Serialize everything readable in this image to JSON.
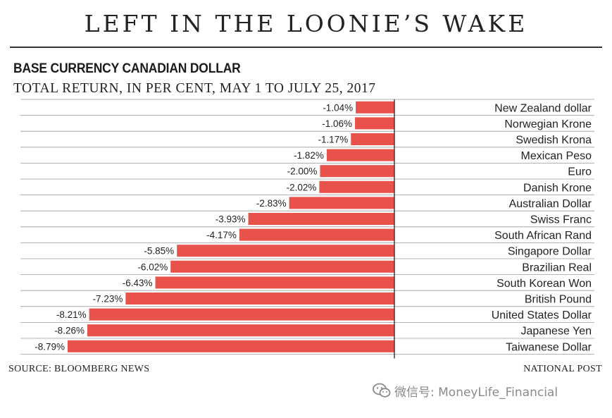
{
  "header": {
    "title": "LEFT IN THE LOONIE’S WAKE",
    "subtitle": "BASE CURRENCY CANADIAN DOLLAR",
    "subtitle2": "TOTAL RETURN, IN PER CENT, MAY 1 TO JULY 25, 2017"
  },
  "footer": {
    "source": "SOURCE: BLOOMBERG NEWS",
    "credit": "NATIONAL POST",
    "watermark": "微信号: MoneyLife_Financial"
  },
  "colors": {
    "bar": "#e8524a",
    "axis": "#333333",
    "gridline": "#9a9a9a"
  },
  "chart_data": {
    "type": "bar",
    "orientation": "horizontal",
    "title": "LEFT IN THE LOONIE’S WAKE",
    "subtitle": "BASE CURRENCY CANADIAN DOLLAR",
    "value_suffix": "%",
    "xlim": [
      -8.79,
      0
    ],
    "categories": [
      "New Zealand dollar",
      "Norwegian Krone",
      "Swedish Krona",
      "Mexican Peso",
      "Euro",
      "Danish Krone",
      "Australian  Dollar",
      "Swiss Franc",
      "South African Rand",
      "Singapore Dollar",
      "Brazilian Real",
      "South Korean Won",
      "British Pound",
      "United States Dollar",
      "Japanese Yen",
      "Taiwanese Dollar"
    ],
    "values": [
      -1.04,
      -1.06,
      -1.17,
      -1.82,
      -2.0,
      -2.02,
      -2.83,
      -3.93,
      -4.17,
      -5.85,
      -6.02,
      -6.43,
      -7.23,
      -8.21,
      -8.26,
      -8.79
    ],
    "labels": [
      "-1.04%",
      "-1.06%",
      "-1.17%",
      "-1.82%",
      "-2.00%",
      "-2.02%",
      "-2.83%",
      "-3.93%",
      "-4.17%",
      "-5.85%",
      "-6.02%",
      "-6.43%",
      "-7.23%",
      "-8.21%",
      "-8.26%",
      "-8.79%"
    ]
  }
}
